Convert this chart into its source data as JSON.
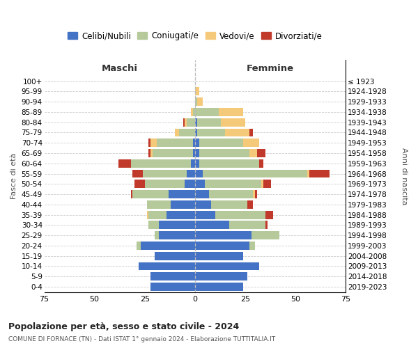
{
  "age_groups": [
    "0-4",
    "5-9",
    "10-14",
    "15-19",
    "20-24",
    "25-29",
    "30-34",
    "35-39",
    "40-44",
    "45-49",
    "50-54",
    "55-59",
    "60-64",
    "65-69",
    "70-74",
    "75-79",
    "80-84",
    "85-89",
    "90-94",
    "95-99",
    "100+"
  ],
  "birth_years": [
    "2019-2023",
    "2014-2018",
    "2009-2013",
    "2004-2008",
    "1999-2003",
    "1994-1998",
    "1989-1993",
    "1984-1988",
    "1979-1983",
    "1974-1978",
    "1969-1973",
    "1964-1968",
    "1959-1963",
    "1954-1958",
    "1949-1953",
    "1944-1948",
    "1939-1943",
    "1934-1938",
    "1929-1933",
    "1924-1928",
    "≤ 1923"
  ],
  "colors": {
    "celibi": "#4472c4",
    "coniugati": "#b5c99a",
    "vedovi": "#f5c97a",
    "divorziati": "#c0392b"
  },
  "maschi": {
    "celibi": [
      22,
      22,
      28,
      20,
      27,
      18,
      18,
      14,
      12,
      13,
      5,
      4,
      2,
      1,
      1,
      0,
      0,
      0,
      0,
      0,
      0
    ],
    "coniugati": [
      0,
      0,
      0,
      0,
      2,
      2,
      5,
      9,
      12,
      18,
      20,
      22,
      30,
      20,
      18,
      8,
      4,
      1,
      0,
      0,
      0
    ],
    "vedovi": [
      0,
      0,
      0,
      0,
      0,
      0,
      0,
      1,
      0,
      0,
      0,
      0,
      0,
      1,
      3,
      2,
      1,
      1,
      0,
      0,
      0
    ],
    "divorziati": [
      0,
      0,
      0,
      0,
      0,
      0,
      0,
      0,
      0,
      1,
      5,
      5,
      6,
      1,
      1,
      0,
      1,
      0,
      0,
      0,
      0
    ]
  },
  "femmine": {
    "celibi": [
      24,
      26,
      32,
      24,
      27,
      28,
      17,
      10,
      8,
      7,
      5,
      4,
      2,
      2,
      2,
      1,
      1,
      0,
      0,
      0,
      0
    ],
    "coniugati": [
      0,
      0,
      0,
      0,
      3,
      14,
      18,
      25,
      18,
      22,
      28,
      52,
      30,
      25,
      22,
      14,
      12,
      12,
      1,
      0,
      0
    ],
    "vedovi": [
      0,
      0,
      0,
      0,
      0,
      0,
      0,
      0,
      0,
      1,
      1,
      1,
      0,
      4,
      8,
      12,
      12,
      12,
      3,
      2,
      0
    ],
    "divorziati": [
      0,
      0,
      0,
      0,
      0,
      0,
      1,
      4,
      3,
      1,
      4,
      10,
      2,
      4,
      0,
      2,
      0,
      0,
      0,
      0,
      0
    ]
  },
  "xlim": 75,
  "title_main": "Popolazione per età, sesso e stato civile - 2024",
  "title_sub": "COMUNE DI FORNACE (TN) - Dati ISTAT 1° gennaio 2024 - Elaborazione TUTTITALIA.IT",
  "ylabel_left": "Fasce di età",
  "ylabel_right": "Anni di nascita",
  "xlabel_left": "Maschi",
  "xlabel_right": "Femmine",
  "legend_labels": [
    "Celibi/Nubili",
    "Coniugati/e",
    "Vedovi/e",
    "Divorziati/e"
  ],
  "background_color": "#ffffff",
  "grid_color": "#cccccc"
}
